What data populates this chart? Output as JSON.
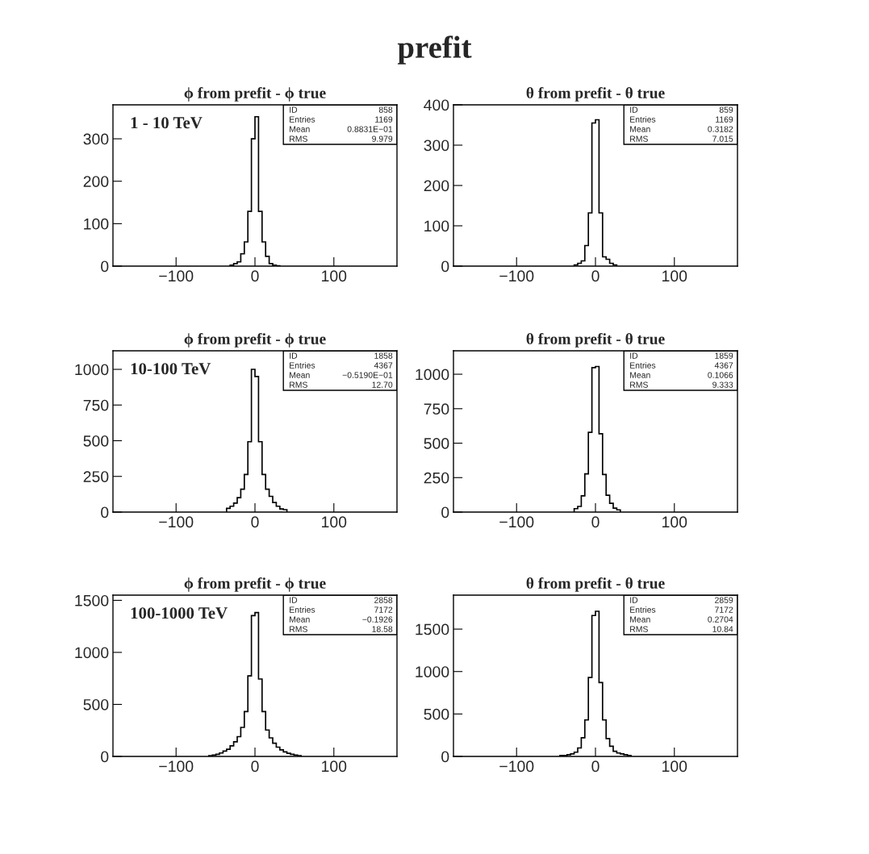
{
  "chart_data": [
    {
      "type": "other",
      "title": "prefit"
    },
    {
      "type": "histogram",
      "title": "ϕ from prefit - ϕ true",
      "bins": [
        -31.5,
        -27,
        -22.5,
        -18,
        -13.5,
        -9,
        -4.5,
        0,
        4.5,
        9,
        13.5,
        18,
        22.5,
        27,
        31.5
      ],
      "values": [
        2,
        6,
        10,
        29,
        57,
        129,
        300,
        352,
        129,
        57,
        23,
        6,
        2,
        1
      ],
      "color": "#000000",
      "xlim": [
        -180,
        180
      ],
      "xticks": [
        -100,
        0,
        100
      ],
      "ylim": [
        0,
        380
      ],
      "yticks": [
        0,
        100,
        200,
        300
      ],
      "annotations": [
        "1 - 10 TeV",
        "ID 858",
        "Entries 1169",
        "Mean 0.8831E−01",
        "RMS 9.979"
      ]
    },
    {
      "type": "histogram",
      "title": "θ from prefit - θ true",
      "bins": [
        -27,
        -22.5,
        -18,
        -13.5,
        -9,
        -4.5,
        0,
        4.5,
        9,
        13.5,
        18,
        22.5,
        27
      ],
      "values": [
        3,
        7,
        13,
        51,
        132,
        355,
        363,
        132,
        23,
        17,
        7,
        3
      ],
      "color": "#000000",
      "xlim": [
        -180,
        180
      ],
      "xticks": [
        -100,
        0,
        100
      ],
      "ylim": [
        0,
        400
      ],
      "yticks": [
        0,
        100,
        200,
        300,
        400
      ],
      "annotations": [
        "ID 859",
        "Entries 1169",
        "Mean 0.3182",
        "RMS 7.015"
      ]
    },
    {
      "type": "histogram",
      "title": "ϕ from prefit - ϕ true",
      "bins": [
        -36,
        -31.5,
        -27,
        -22.5,
        -18,
        -13.5,
        -9,
        -4.5,
        0,
        4.5,
        9,
        13.5,
        18,
        22.5,
        27,
        31.5,
        36,
        40.5
      ],
      "values": [
        26,
        41,
        63,
        101,
        160,
        263,
        493,
        1000,
        950,
        493,
        263,
        160,
        110,
        67,
        41,
        22,
        17
      ],
      "color": "#000000",
      "xlim": [
        -180,
        180
      ],
      "xticks": [
        -100,
        0,
        100
      ],
      "ylim": [
        0,
        1130
      ],
      "yticks": [
        0,
        250,
        500,
        750,
        1000
      ],
      "annotations": [
        "10-100 TeV",
        "ID 1858",
        "Entries 4367",
        "Mean −0.5190E−01",
        "RMS 12.70"
      ]
    },
    {
      "type": "histogram",
      "title": "θ from prefit - θ true",
      "bins": [
        -27,
        -22.5,
        -18,
        -13.5,
        -9,
        -4.5,
        0,
        4.5,
        9,
        13.5,
        18,
        22.5,
        27,
        31.5
      ],
      "values": [
        25,
        41,
        118,
        277,
        578,
        1048,
        1056,
        568,
        273,
        122,
        64,
        29,
        16
      ],
      "color": "#000000",
      "xlim": [
        -180,
        180
      ],
      "xticks": [
        -100,
        0,
        100
      ],
      "ylim": [
        0,
        1170
      ],
      "yticks": [
        0,
        250,
        500,
        750,
        1000
      ],
      "annotations": [
        "ID 1859",
        "Entries 4367",
        "Mean 0.1066",
        "RMS 9.333"
      ]
    },
    {
      "type": "histogram",
      "title": "ϕ from prefit - ϕ true",
      "bins": [
        -58.5,
        -54,
        -49.5,
        -45,
        -40.5,
        -36,
        -31.5,
        -27,
        -22.5,
        -18,
        -13.5,
        -9,
        -4.5,
        0,
        4.5,
        9,
        13.5,
        18,
        22.5,
        27,
        31.5,
        36,
        40.5,
        45,
        49.5,
        54,
        58.5
      ],
      "values": [
        8,
        13,
        20,
        33,
        51,
        69,
        102,
        140,
        190,
        279,
        431,
        774,
        1353,
        1383,
        744,
        431,
        254,
        178,
        127,
        89,
        63,
        43,
        30,
        20,
        13,
        8
      ],
      "color": "#000000",
      "xlim": [
        -180,
        180
      ],
      "xticks": [
        -100,
        0,
        100
      ],
      "ylim": [
        0,
        1550
      ],
      "yticks": [
        0,
        500,
        1000,
        1500
      ],
      "annotations": [
        "100-1000 TeV",
        "ID 2858",
        "Entries 7172",
        "Mean −0.1926",
        "RMS 18.58"
      ]
    },
    {
      "type": "histogram",
      "title": "θ from prefit - θ true",
      "bins": [
        -45,
        -40.5,
        -36,
        -31.5,
        -27,
        -22.5,
        -18,
        -13.5,
        -9,
        -4.5,
        0,
        4.5,
        9,
        13.5,
        18,
        22.5,
        27,
        31.5,
        36,
        40.5,
        45
      ],
      "values": [
        10,
        10,
        20,
        30,
        50,
        100,
        220,
        430,
        930,
        1660,
        1710,
        870,
        430,
        210,
        120,
        60,
        40,
        30,
        20,
        10
      ],
      "color": "#000000",
      "xlim": [
        -180,
        180
      ],
      "xticks": [
        -100,
        0,
        100
      ],
      "ylim": [
        0,
        1900
      ],
      "yticks": [
        0,
        500,
        1000,
        1500
      ],
      "annotations": [
        "ID 2859",
        "Entries 7172",
        "Mean 0.2704",
        "RMS 10.84"
      ]
    }
  ]
}
